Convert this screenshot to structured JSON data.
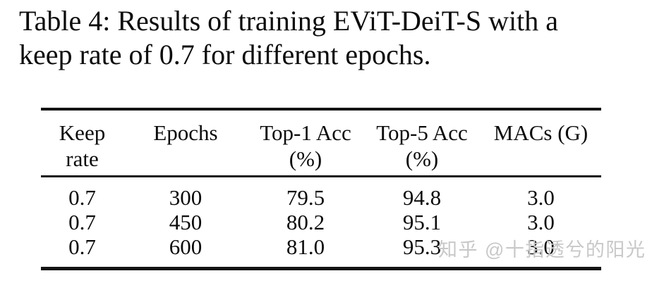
{
  "caption": {
    "line1": "Table 4: Results of training EViT-DeiT-S with a",
    "line2": "keep rate of 0.7 for different epochs."
  },
  "table": {
    "columns": [
      {
        "line1": "Keep",
        "line2": "rate"
      },
      {
        "line1": "Epochs",
        "line2": ""
      },
      {
        "line1": "Top-1 Acc",
        "line2": "(%)"
      },
      {
        "line1": "Top-5 Acc",
        "line2": "(%)"
      },
      {
        "line1": "MACs (G)",
        "line2": ""
      }
    ],
    "rows": [
      [
        "0.7",
        "300",
        "79.5",
        "94.8",
        "3.0"
      ],
      [
        "0.7",
        "450",
        "80.2",
        "95.1",
        "3.0"
      ],
      [
        "0.7",
        "600",
        "81.0",
        "95.3",
        "3.0"
      ]
    ]
  },
  "watermark": {
    "text": "知乎 @十指透兮的阳光",
    "color": "#c8c8c8"
  },
  "colors": {
    "background": "#ffffff",
    "text": "#0b0b0b",
    "rule": "#141414"
  }
}
